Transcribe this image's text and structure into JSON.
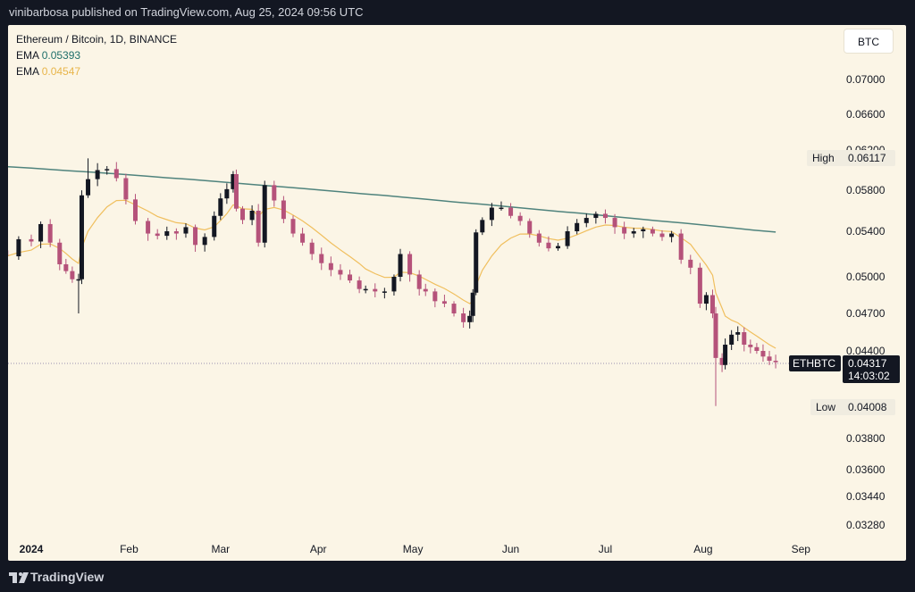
{
  "header": {
    "published": "vinibarbosa published on TradingView.com, Aug 25, 2024 09:56 UTC"
  },
  "legend": {
    "symbol": "Ethereum / Bitcoin, 1D, BINANCE",
    "ema1_label": "EMA",
    "ema1_value": "0.05393",
    "ema2_label": "EMA",
    "ema2_value": "0.04547"
  },
  "currency_button": "BTC",
  "markers": {
    "high_label": "High",
    "high_value": "0.06117",
    "low_label": "Low",
    "low_value": "0.04008",
    "last_symbol": "ETHBTC",
    "last_price": "0.04317",
    "countdown": "14:03:02"
  },
  "footer": {
    "brand": "TradingView"
  },
  "colors": {
    "up": "#131722",
    "down": "#b5527a",
    "ema_long": "#4f837d",
    "ema_short": "#f0bf5e",
    "background": "#fbf5e6"
  },
  "chart_data": {
    "type": "candlestick",
    "title": "Ethereum / Bitcoin, 1D, BINANCE",
    "symbol": "ETHBTC",
    "x_ticks": [
      "2024",
      "Feb",
      "Mar",
      "Apr",
      "May",
      "Jun",
      "Jul",
      "Aug",
      "Sep"
    ],
    "y_ticks": [
      "0.07000",
      "0.06600",
      "0.06200",
      "0.05800",
      "0.05400",
      "0.05000",
      "0.04700",
      "0.04400",
      "0.04000",
      "0.03800",
      "0.03600",
      "0.03440",
      "0.03280"
    ],
    "high": 0.06117,
    "low": 0.04008,
    "last": 0.04317,
    "ema_long_last": 0.05393,
    "ema_short_last": 0.04547,
    "closes": [
      [
        "2023-12-24",
        0.0518
      ],
      [
        "2023-12-28",
        0.0533
      ],
      [
        "2024-01-01",
        0.0531
      ],
      [
        "2024-01-04",
        0.0547
      ],
      [
        "2024-01-07",
        0.053
      ],
      [
        "2024-01-10",
        0.0511
      ],
      [
        "2024-01-12",
        0.0505
      ],
      [
        "2024-01-14",
        0.0498
      ],
      [
        "2024-01-16",
        0.0498
      ],
      [
        "2024-01-17",
        0.0575
      ],
      [
        "2024-01-19",
        0.0591
      ],
      [
        "2024-01-22",
        0.06
      ],
      [
        "2024-01-25",
        0.0601
      ],
      [
        "2024-01-28",
        0.0592
      ],
      [
        "2024-01-31",
        0.0571
      ],
      [
        "2024-02-03",
        0.055
      ],
      [
        "2024-02-07",
        0.0538
      ],
      [
        "2024-02-10",
        0.0536
      ],
      [
        "2024-02-13",
        0.054
      ],
      [
        "2024-02-16",
        0.0538
      ],
      [
        "2024-02-19",
        0.0544
      ],
      [
        "2024-02-22",
        0.0528
      ],
      [
        "2024-02-25",
        0.0535
      ],
      [
        "2024-02-28",
        0.0555
      ],
      [
        "2024-03-01",
        0.0572
      ],
      [
        "2024-03-03",
        0.0581
      ],
      [
        "2024-03-05",
        0.0596
      ],
      [
        "2024-03-06",
        0.0562
      ],
      [
        "2024-03-08",
        0.0551
      ],
      [
        "2024-03-11",
        0.056
      ],
      [
        "2024-03-13",
        0.053
      ],
      [
        "2024-03-15",
        0.0585
      ],
      [
        "2024-03-18",
        0.057
      ],
      [
        "2024-03-21",
        0.0552
      ],
      [
        "2024-03-24",
        0.0538
      ],
      [
        "2024-03-27",
        0.053
      ],
      [
        "2024-03-30",
        0.052
      ],
      [
        "2024-04-02",
        0.0512
      ],
      [
        "2024-04-05",
        0.0506
      ],
      [
        "2024-04-08",
        0.0502
      ],
      [
        "2024-04-11",
        0.0497
      ],
      [
        "2024-04-14",
        0.049
      ],
      [
        "2024-04-16",
        0.049
      ],
      [
        "2024-04-19",
        0.0488
      ],
      [
        "2024-04-22",
        0.0488
      ],
      [
        "2024-04-25",
        0.05
      ],
      [
        "2024-04-27",
        0.052
      ],
      [
        "2024-04-30",
        0.0502
      ],
      [
        "2024-05-03",
        0.049
      ],
      [
        "2024-05-05",
        0.0488
      ],
      [
        "2024-05-08",
        0.048
      ],
      [
        "2024-05-11",
        0.0478
      ],
      [
        "2024-05-14",
        0.047
      ],
      [
        "2024-05-17",
        0.0463
      ],
      [
        "2024-05-19",
        0.0468
      ],
      [
        "2024-05-20",
        0.0487
      ],
      [
        "2024-05-21",
        0.0539
      ],
      [
        "2024-05-23",
        0.0551
      ],
      [
        "2024-05-26",
        0.0563
      ],
      [
        "2024-05-29",
        0.0563
      ],
      [
        "2024-06-01",
        0.0555
      ],
      [
        "2024-06-04",
        0.055
      ],
      [
        "2024-06-07",
        0.0538
      ],
      [
        "2024-06-10",
        0.053
      ],
      [
        "2024-06-13",
        0.0525
      ],
      [
        "2024-06-16",
        0.0527
      ],
      [
        "2024-06-19",
        0.054
      ],
      [
        "2024-06-22",
        0.0548
      ],
      [
        "2024-06-25",
        0.0553
      ],
      [
        "2024-06-28",
        0.0557
      ],
      [
        "2024-07-01",
        0.0553
      ],
      [
        "2024-07-04",
        0.0544
      ],
      [
        "2024-07-07",
        0.0538
      ],
      [
        "2024-07-10",
        0.054
      ],
      [
        "2024-07-13",
        0.0542
      ],
      [
        "2024-07-16",
        0.0538
      ],
      [
        "2024-07-19",
        0.0535
      ],
      [
        "2024-07-22",
        0.0538
      ],
      [
        "2024-07-25",
        0.0515
      ],
      [
        "2024-07-28",
        0.0508
      ],
      [
        "2024-07-31",
        0.0478
      ],
      [
        "2024-08-02",
        0.0485
      ],
      [
        "2024-08-04",
        0.047
      ],
      [
        "2024-08-05",
        0.0435
      ],
      [
        "2024-08-07",
        0.043
      ],
      [
        "2024-08-08",
        0.0445
      ],
      [
        "2024-08-10",
        0.0453
      ],
      [
        "2024-08-12",
        0.0455
      ],
      [
        "2024-08-14",
        0.0445
      ],
      [
        "2024-08-16",
        0.0443
      ],
      [
        "2024-08-18",
        0.044
      ],
      [
        "2024-08-20",
        0.0436
      ],
      [
        "2024-08-22",
        0.0433
      ],
      [
        "2024-08-24",
        0.0432
      ]
    ]
  }
}
